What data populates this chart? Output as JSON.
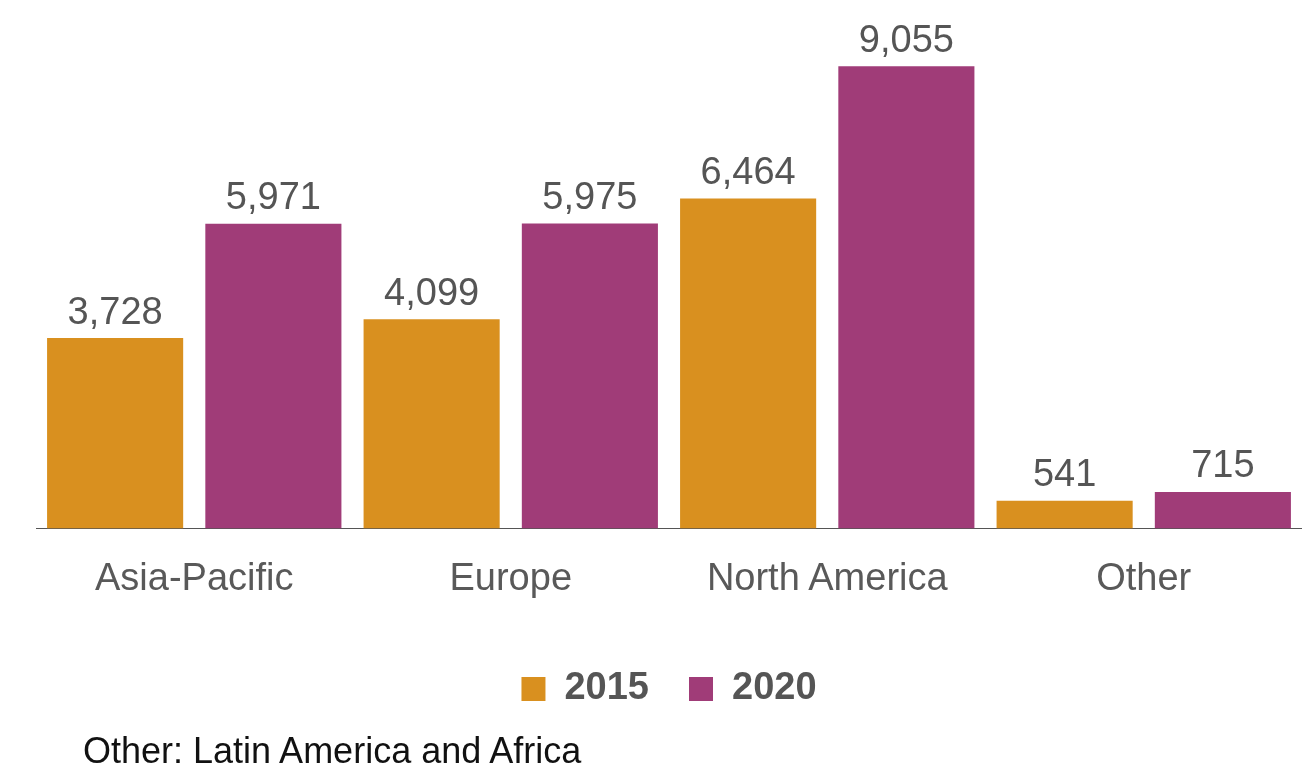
{
  "chart_data": {
    "type": "bar",
    "categories": [
      "Asia-Pacific",
      "Europe",
      "North America",
      "Other"
    ],
    "series": [
      {
        "name": "2015",
        "color": "#d9901f",
        "values": [
          3728,
          4099,
          6464,
          541
        ],
        "value_labels": [
          "3,728",
          "4,099",
          "6,464",
          "541"
        ]
      },
      {
        "name": "2020",
        "color": "#a03c78",
        "values": [
          5971,
          5975,
          9055,
          715
        ],
        "value_labels": [
          "5,971",
          "5,975",
          "9,055",
          "715"
        ]
      }
    ],
    "legend": "bottom",
    "grid": false,
    "annotations": [
      "Other: Latin America and Africa"
    ]
  }
}
